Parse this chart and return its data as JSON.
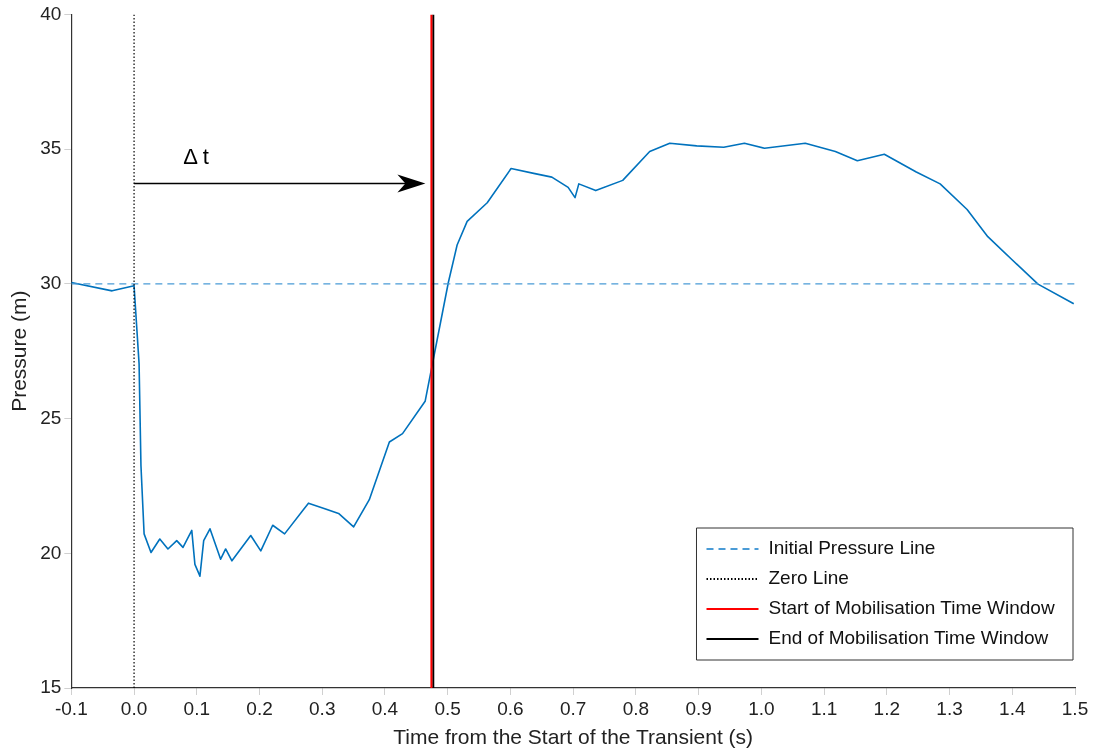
{
  "chart_data": {
    "type": "line",
    "xlabel": "Time from the Start of the Transient (s)",
    "ylabel": "Pressure (m)",
    "series": [
      {
        "color": "#0072bd",
        "x": [
          -0.1,
          -0.035,
          0.0,
          0.008,
          0.011,
          0.016,
          0.027,
          0.041,
          0.054,
          0.068,
          0.078,
          0.092,
          0.097,
          0.105,
          0.111,
          0.121,
          0.138,
          0.146,
          0.156,
          0.186,
          0.202,
          0.221,
          0.24,
          0.278,
          0.326,
          0.35,
          0.375,
          0.407,
          0.428,
          0.464,
          0.501,
          0.515,
          0.531,
          0.563,
          0.601,
          0.639,
          0.666,
          0.692,
          0.703,
          0.709,
          0.736,
          0.779,
          0.822,
          0.854,
          0.897,
          0.94,
          0.973,
          1.005,
          1.07,
          1.118,
          1.153,
          1.196,
          1.247,
          1.285,
          1.328,
          1.361,
          1.398,
          1.441,
          1.498
        ],
        "values": [
          30.05,
          29.74,
          29.93,
          27.03,
          23.25,
          20.72,
          20.03,
          20.53,
          20.16,
          20.47,
          20.22,
          20.85,
          19.59,
          19.15,
          20.47,
          20.91,
          19.78,
          20.16,
          19.72,
          20.66,
          20.09,
          21.04,
          20.72,
          21.86,
          21.48,
          20.98,
          21.99,
          24.13,
          24.44,
          25.64,
          30.05,
          31.44,
          32.32,
          33.01,
          34.28,
          34.09,
          33.96,
          33.58,
          33.2,
          33.71,
          33.46,
          33.84,
          34.91,
          35.22,
          35.12,
          35.07,
          35.22,
          35.03,
          35.22,
          34.91,
          34.57,
          34.81,
          34.15,
          33.71,
          32.76,
          31.75,
          30.93,
          29.99,
          29.26
        ]
      },
      {
        "name": "Zero Line",
        "color": "#000000",
        "line_style": "dotted",
        "x": [
          0,
          0
        ],
        "values": [
          15,
          40
        ]
      },
      {
        "name": "Start of Mobilisation Time Window",
        "color": "#ff0000",
        "x": [
          0.474,
          0.474
        ],
        "values": [
          15,
          40
        ]
      },
      {
        "name": "End of Mobilisation Time Window",
        "color": "#000000",
        "x": [
          0.477,
          0.477
        ],
        "values": [
          15,
          40
        ]
      }
    ],
    "xlim": [
      -0.1,
      1.5
    ],
    "xticks": [
      -0.1,
      {
        "value": 0,
        "label": "0.0"
      },
      0.1,
      0.2,
      0.3,
      0.4,
      0.5,
      0.6,
      0.7,
      0.8,
      0.9,
      {
        "value": 1,
        "label": "1.0"
      },
      1.1,
      1.2,
      1.3,
      1.4,
      1.5
    ],
    "ylim": [
      15,
      40
    ],
    "yticks": [
      15,
      20,
      25,
      30,
      35,
      40
    ],
    "ref_lines": [
      {
        "axis": "y",
        "value": 30,
        "label": "Initial Pressure Line",
        "color": "#4a9bd6",
        "line_style": "dashed"
      }
    ],
    "annotations": [
      "Δ t"
    ],
    "legend": "bottom right",
    "marker": "none",
    "line_style": "solid"
  }
}
